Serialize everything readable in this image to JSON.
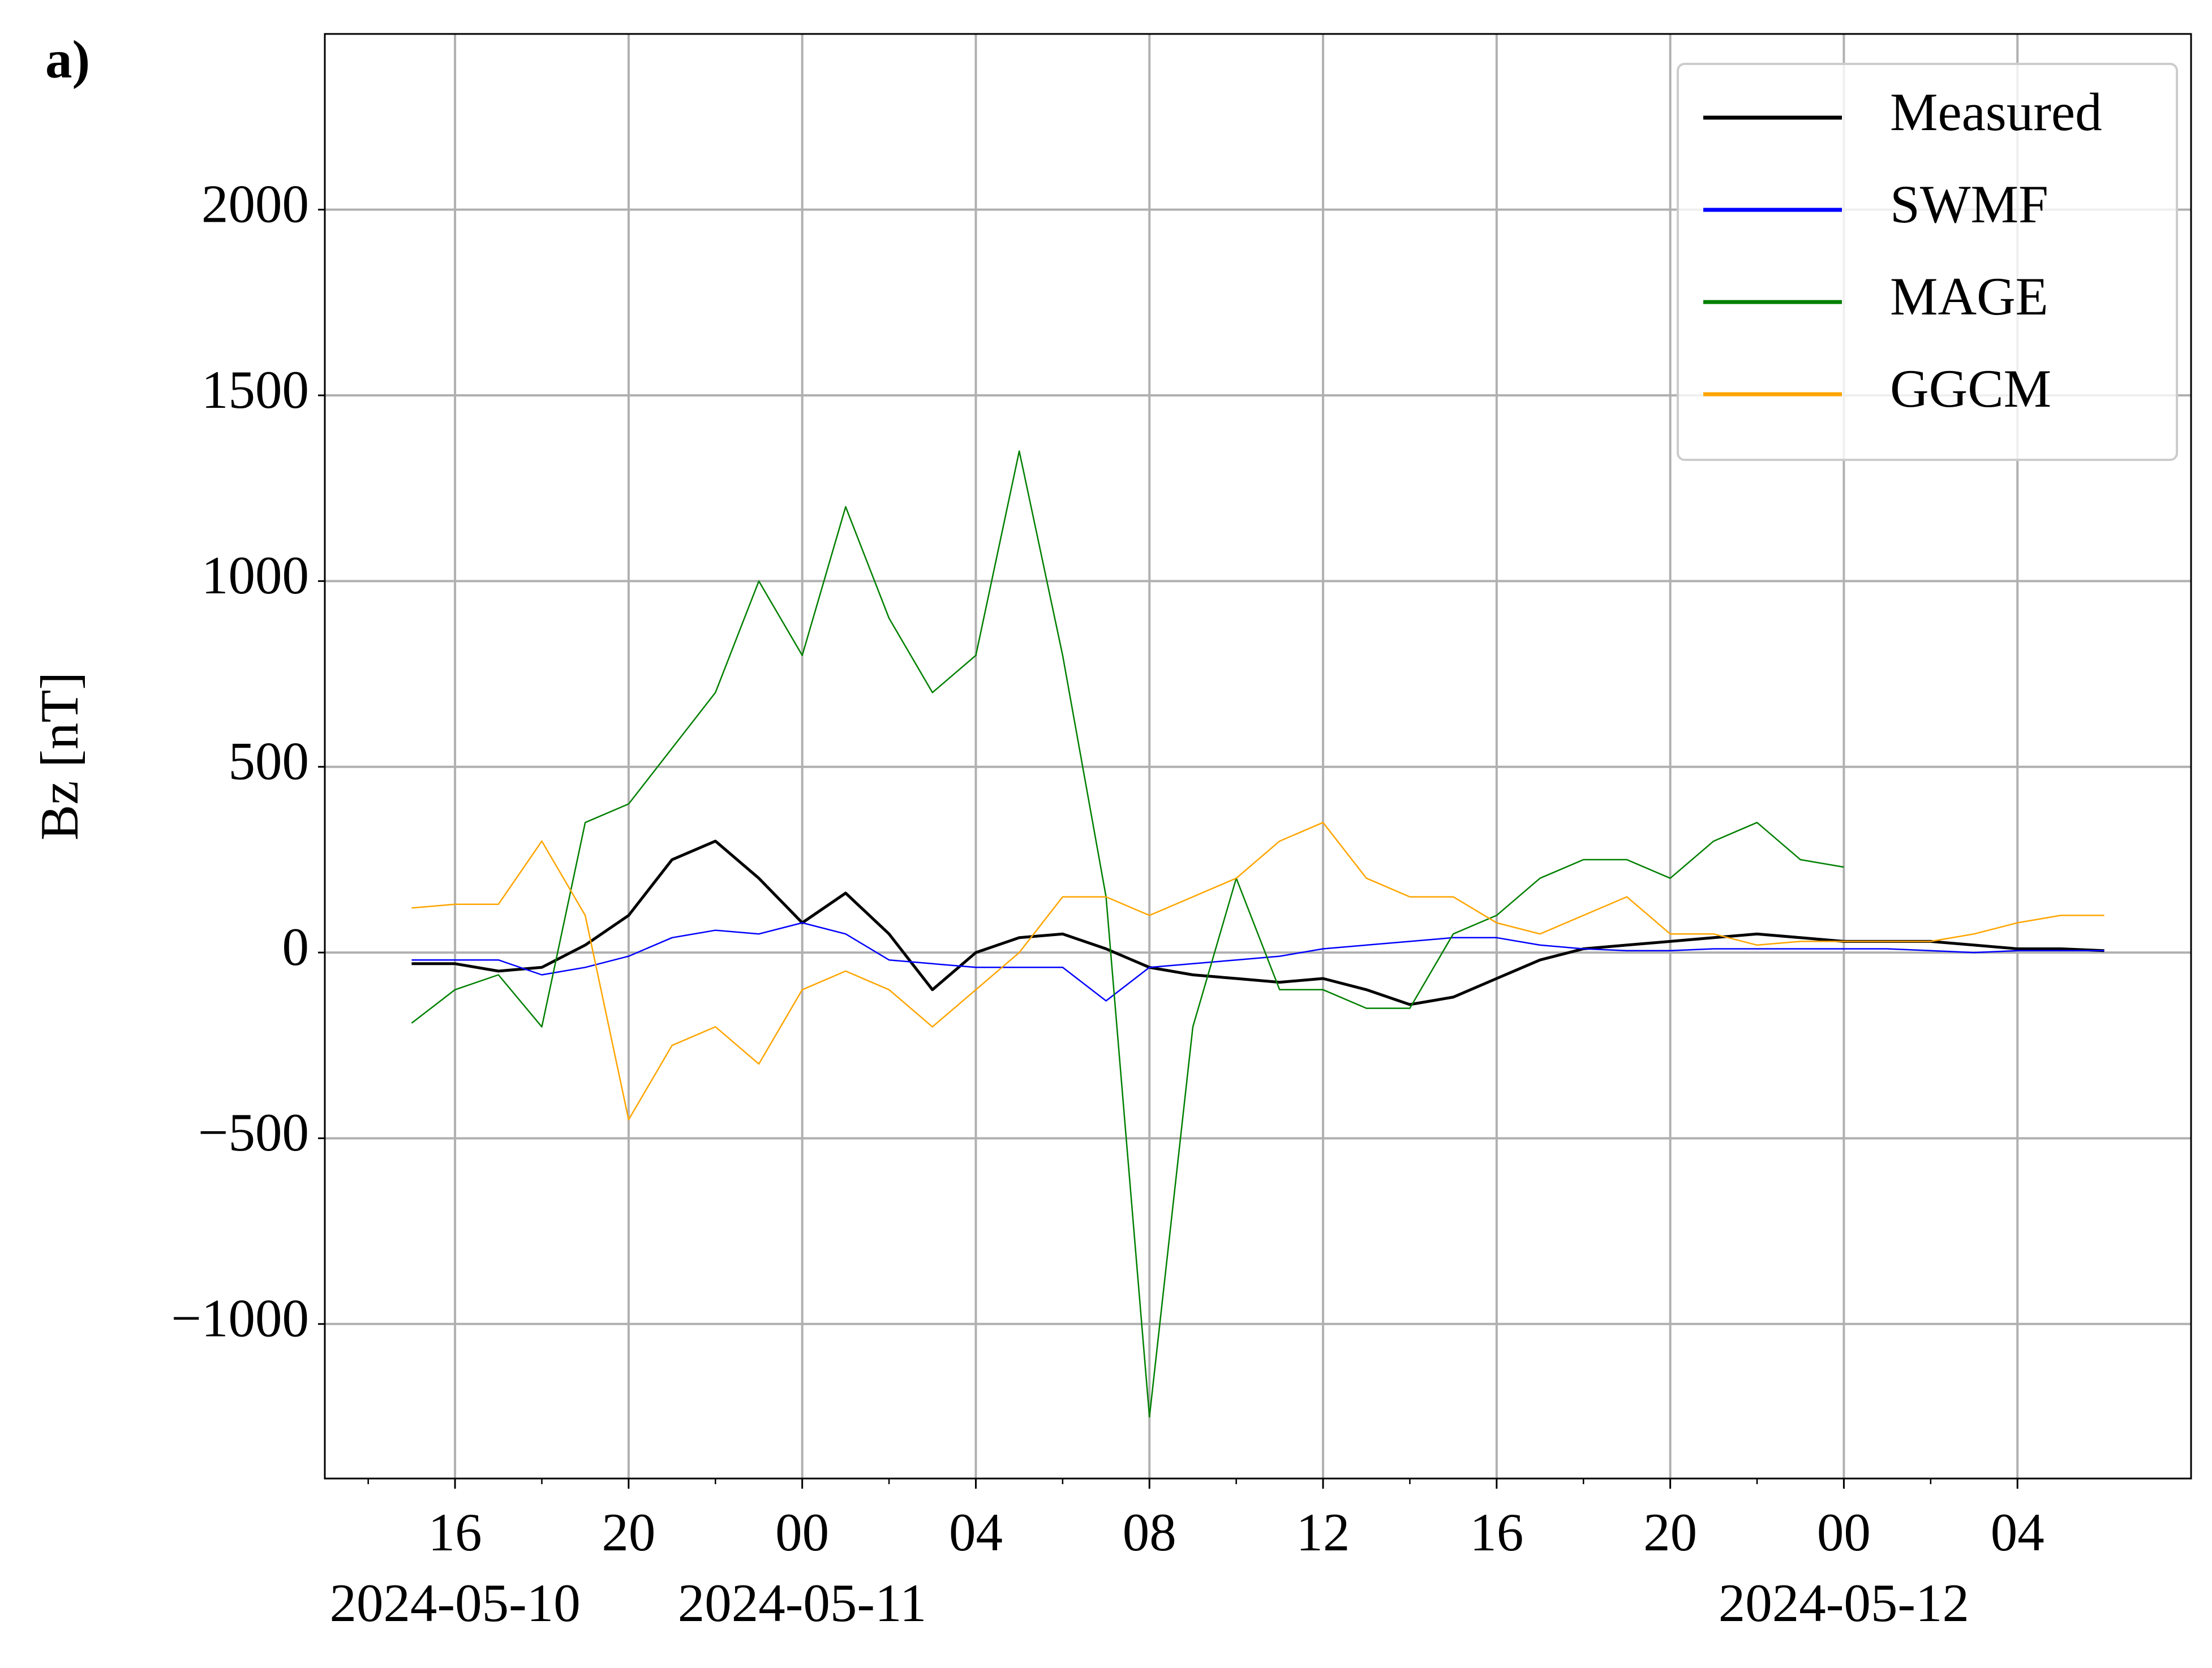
{
  "chart_data": {
    "type": "line",
    "panel_label": "a)",
    "ylabel": "Bz [nT]",
    "x": [
      "2024-05-10T15:00",
      "2024-05-10T16:00",
      "2024-05-10T17:00",
      "2024-05-10T18:00",
      "2024-05-10T19:00",
      "2024-05-10T20:00",
      "2024-05-10T21:00",
      "2024-05-10T22:00",
      "2024-05-10T23:00",
      "2024-05-11T00:00",
      "2024-05-11T01:00",
      "2024-05-11T02:00",
      "2024-05-11T03:00",
      "2024-05-11T04:00",
      "2024-05-11T05:00",
      "2024-05-11T06:00",
      "2024-05-11T07:00",
      "2024-05-11T08:00",
      "2024-05-11T09:00",
      "2024-05-11T10:00",
      "2024-05-11T11:00",
      "2024-05-11T12:00",
      "2024-05-11T13:00",
      "2024-05-11T14:00",
      "2024-05-11T15:00",
      "2024-05-11T16:00",
      "2024-05-11T17:00",
      "2024-05-11T18:00",
      "2024-05-11T19:00",
      "2024-05-11T20:00",
      "2024-05-11T21:00",
      "2024-05-11T22:00",
      "2024-05-11T23:00",
      "2024-05-12T00:00",
      "2024-05-12T01:00",
      "2024-05-12T02:00",
      "2024-05-12T03:00",
      "2024-05-12T04:00",
      "2024-05-12T05:00",
      "2024-05-12T06:00"
    ],
    "series": [
      {
        "name": "Measured",
        "color": "#000000",
        "width": 5,
        "values": [
          -30,
          -30,
          -50,
          -40,
          20,
          100,
          250,
          300,
          200,
          80,
          160,
          50,
          -100,
          0,
          40,
          50,
          10,
          -40,
          -60,
          -70,
          -80,
          -70,
          -100,
          -140,
          -120,
          -70,
          -20,
          10,
          20,
          30,
          40,
          50,
          40,
          30,
          30,
          30,
          20,
          10,
          10,
          5
        ]
      },
      {
        "name": "SWMF",
        "color": "#0000ff",
        "width": 2.5,
        "values": [
          -20,
          -20,
          -20,
          -60,
          -40,
          -10,
          40,
          60,
          50,
          80,
          50,
          -20,
          -30,
          -40,
          -40,
          -40,
          -130,
          -40,
          -30,
          -20,
          -10,
          10,
          20,
          30,
          40,
          40,
          20,
          10,
          5,
          5,
          10,
          10,
          10,
          10,
          10,
          5,
          0,
          5,
          5,
          5
        ]
      },
      {
        "name": "MAGE",
        "color": "#008000",
        "width": 2.5,
        "values": [
          -190,
          -100,
          -60,
          -200,
          350,
          400,
          550,
          700,
          1000,
          800,
          1200,
          900,
          700,
          800,
          1350,
          800,
          150,
          -1250,
          -200,
          200,
          -100,
          -100,
          -150,
          -150,
          50,
          100,
          200,
          250,
          250,
          200,
          300,
          350,
          250,
          230,
          null,
          null,
          null,
          null,
          null,
          null
        ]
      },
      {
        "name": "GGCM",
        "color": "#ffa500",
        "width": 2.5,
        "values": [
          120,
          130,
          130,
          300,
          100,
          -450,
          -250,
          -200,
          -300,
          -100,
          -50,
          -100,
          -200,
          -100,
          0,
          150,
          150,
          100,
          150,
          200,
          300,
          350,
          200,
          150,
          150,
          80,
          50,
          100,
          150,
          50,
          50,
          20,
          30,
          30,
          30,
          30,
          50,
          80,
          100,
          100
        ]
      }
    ],
    "xlim": [
      "2024-05-10T13:00",
      "2024-05-12T08:00"
    ],
    "xticks": [
      {
        "value": "2024-05-10T16:00",
        "label": "16"
      },
      {
        "value": "2024-05-10T20:00",
        "label": "20"
      },
      {
        "value": "2024-05-11T00:00",
        "label": "00"
      },
      {
        "value": "2024-05-11T04:00",
        "label": "04"
      },
      {
        "value": "2024-05-11T08:00",
        "label": "08"
      },
      {
        "value": "2024-05-11T12:00",
        "label": "12"
      },
      {
        "value": "2024-05-11T16:00",
        "label": "16"
      },
      {
        "value": "2024-05-11T20:00",
        "label": "20"
      },
      {
        "value": "2024-05-12T00:00",
        "label": "00"
      },
      {
        "value": "2024-05-12T04:00",
        "label": "04"
      }
    ],
    "x_date_labels": [
      {
        "value": "2024-05-10T16:00",
        "label": "2024-05-10"
      },
      {
        "value": "2024-05-11T00:00",
        "label": "2024-05-11"
      },
      {
        "value": "2024-05-12T00:00",
        "label": "2024-05-12"
      }
    ],
    "ylim": [
      -1416,
      2473
    ],
    "yticks": [
      {
        "value": -1000,
        "label": "−1000"
      },
      {
        "value": -500,
        "label": "−500"
      },
      0,
      500,
      1000,
      1500,
      2000
    ],
    "grid": true,
    "legend": "upper right"
  }
}
